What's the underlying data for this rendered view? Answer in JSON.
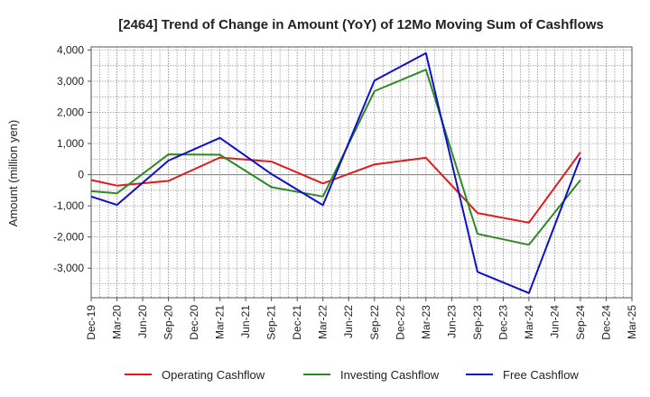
{
  "chart_data": {
    "type": "line",
    "title": "[2464]  Trend of Change in Amount (YoY) of 12Mo Moving Sum of Cashflows",
    "xlabel": "",
    "ylabel": "Amount (million yen)",
    "ylim": [
      -3950,
      4100
    ],
    "grid": true,
    "legend_position": "bottom",
    "categories": [
      "Dec-19",
      "Mar-20",
      "Jun-20",
      "Sep-20",
      "Dec-20",
      "Mar-21",
      "Jun-21",
      "Sep-21",
      "Dec-21",
      "Mar-22",
      "Jun-22",
      "Sep-22",
      "Dec-22",
      "Mar-23",
      "Jun-23",
      "Sep-23",
      "Dec-23",
      "Mar-24",
      "Jun-24",
      "Sep-24",
      "Dec-24",
      "Mar-25"
    ],
    "yticks": [
      4000,
      3000,
      2000,
      1000,
      0,
      -1000,
      -2000,
      -3000
    ],
    "ytick_labels": [
      "4,000",
      "3,000",
      "2,000",
      "1,000",
      "0",
      "-1,000",
      "-2,000",
      "-3,000"
    ],
    "series": [
      {
        "name": "Operating Cashflow",
        "color": "#e31a1c",
        "values": [
          -170,
          -350,
          null,
          -200,
          null,
          550,
          null,
          420,
          null,
          -280,
          null,
          330,
          null,
          540,
          null,
          -1230,
          null,
          -1540,
          null,
          720,
          null,
          null
        ]
      },
      {
        "name": "Investing Cashflow",
        "color": "#2e8b23",
        "values": [
          -530,
          -600,
          null,
          650,
          null,
          640,
          null,
          -400,
          null,
          -700,
          null,
          2680,
          null,
          3370,
          null,
          -1900,
          null,
          -2250,
          null,
          -170,
          null,
          null
        ]
      },
      {
        "name": "Free Cashflow",
        "color": "#1010cc",
        "values": [
          -700,
          -970,
          null,
          450,
          null,
          1180,
          null,
          20,
          null,
          -980,
          null,
          3020,
          null,
          3900,
          null,
          -3120,
          null,
          -3800,
          null,
          550,
          null,
          null
        ]
      }
    ]
  }
}
